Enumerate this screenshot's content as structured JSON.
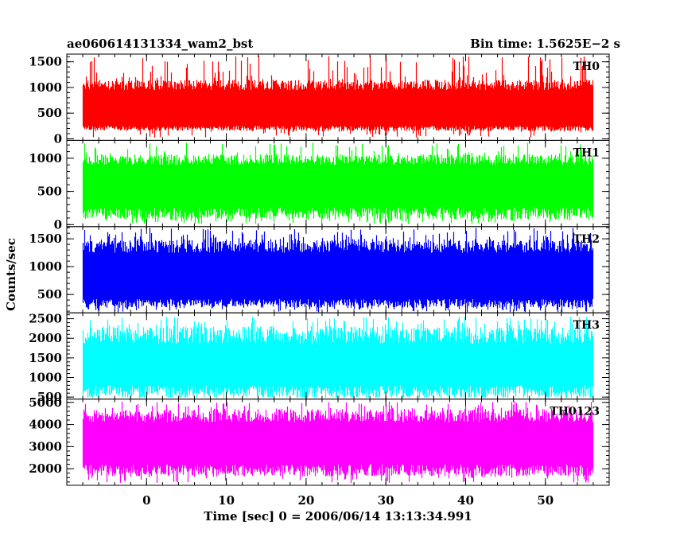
{
  "chart_data": {
    "type": "line",
    "title_left": "ae060614131334_wam2_bst",
    "title_right": "Bin time: 1.5625E−2 s",
    "xlabel": "Time [sec] 0 = 2006/06/14 13:13:34.991",
    "ylabel": "Counts/sec",
    "xlim": [
      -10,
      58
    ],
    "x_ticks": [
      0,
      10,
      20,
      30,
      40,
      50
    ],
    "x_tick_labels": [
      "0",
      "10",
      "20",
      "30",
      "40",
      "50"
    ],
    "data_range": [
      -8,
      56
    ],
    "grid": false,
    "panels": [
      {
        "name": "TH0",
        "color": "#ff0000",
        "ylim": [
          -30,
          1650
        ],
        "y_ticks": [
          0,
          500,
          1000,
          1500
        ],
        "y_tick_labels": [
          "0",
          "500",
          "1000",
          "1500"
        ],
        "band": {
          "low": [
            150,
            250
          ],
          "high": [
            950,
            1150
          ],
          "spike_max": 1620,
          "dip_min": 20
        }
      },
      {
        "name": "TH1",
        "color": "#00ff00",
        "ylim": [
          -30,
          1270
        ],
        "y_ticks": [
          0,
          500,
          1000
        ],
        "y_tick_labels": [
          "0",
          "500",
          "1000"
        ],
        "band": {
          "low": [
            80,
            260
          ],
          "high": [
            900,
            1060
          ],
          "spike_max": 1240,
          "dip_min": 10
        }
      },
      {
        "name": "TH2",
        "color": "#0000ff",
        "ylim": [
          170,
          1720
        ],
        "y_ticks": [
          500,
          1000,
          1500
        ],
        "y_tick_labels": [
          "500",
          "1000",
          "1500"
        ],
        "band": {
          "low": [
            260,
            420
          ],
          "high": [
            1250,
            1500
          ],
          "spike_max": 1700,
          "dip_min": 180
        }
      },
      {
        "name": "TH3",
        "color": "#00ffff",
        "ylim": [
          450,
          2650
        ],
        "y_ticks": [
          500,
          1000,
          1500,
          2000,
          2500
        ],
        "y_tick_labels": [
          "500",
          "1000",
          "1500",
          "2000",
          "2500"
        ],
        "band": {
          "low": [
            500,
            800
          ],
          "high": [
            1850,
            2300
          ],
          "spike_max": 2550,
          "dip_min": 480
        }
      },
      {
        "name": "TH0123",
        "color": "#ff00ff",
        "ylim": [
          1250,
          5150
        ],
        "y_ticks": [
          2000,
          3000,
          4000,
          5000
        ],
        "y_tick_labels": [
          "2000",
          "3000",
          "4000",
          "5000"
        ],
        "band": {
          "low": [
            1650,
            2200
          ],
          "high": [
            4100,
            4700
          ],
          "spike_max": 5050,
          "dip_min": 1350
        }
      }
    ]
  }
}
